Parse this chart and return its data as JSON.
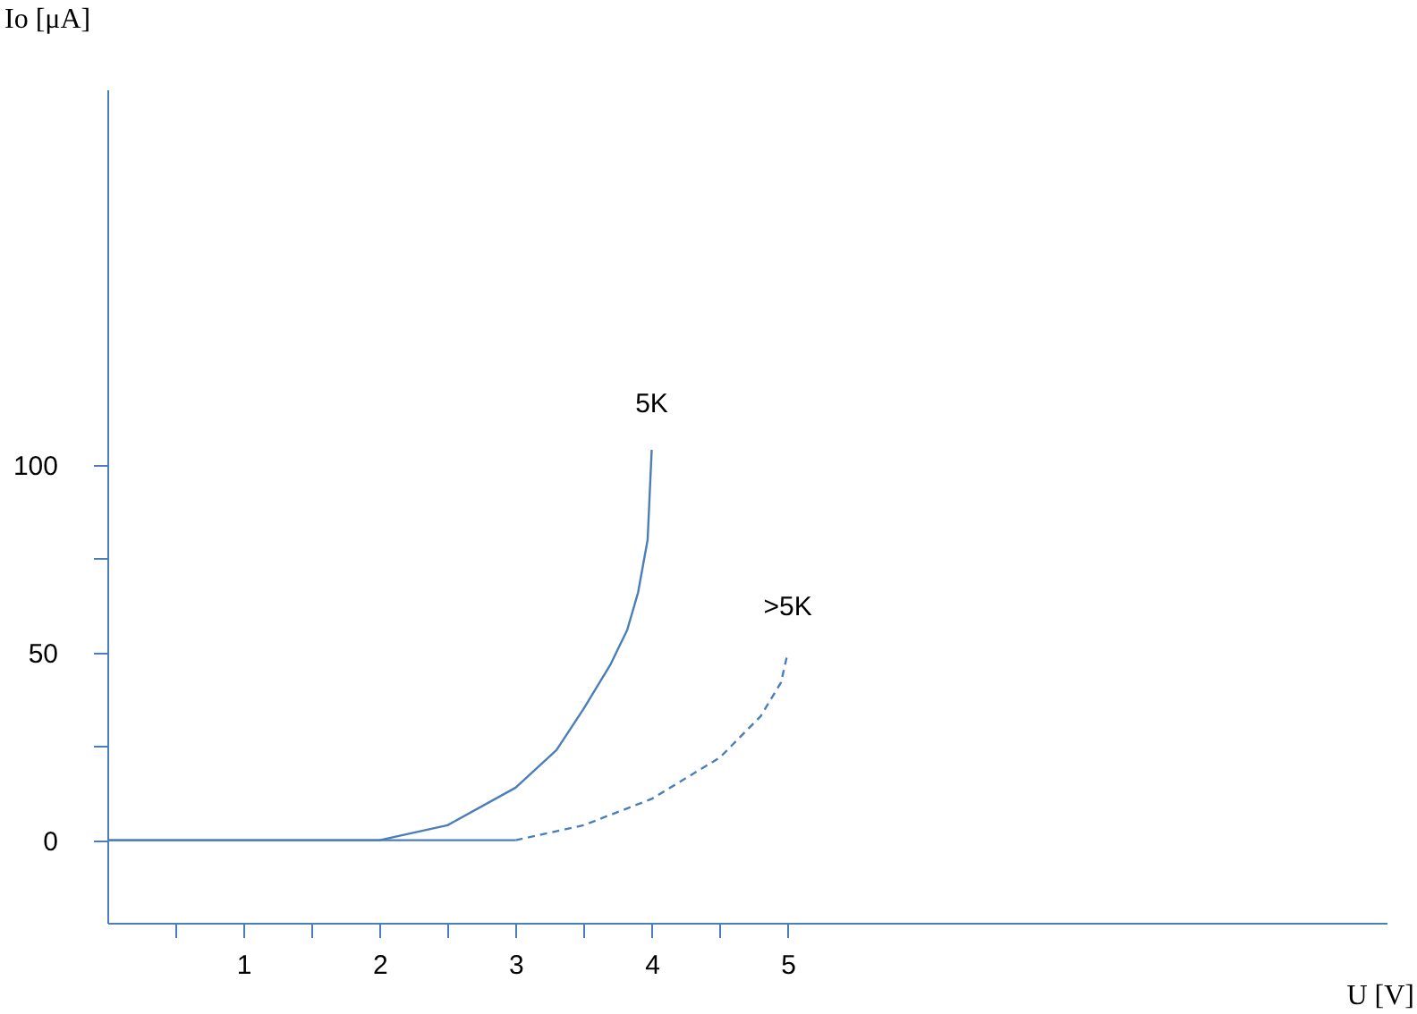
{
  "chart_data": {
    "type": "line",
    "xlabel": "U [V]",
    "ylabel": "Io [μA]",
    "xlim": [
      0,
      9.4
    ],
    "ylim": [
      -22,
      200
    ],
    "xticks": [
      {
        "value": 0.5,
        "label": null
      },
      1,
      {
        "value": 1.5,
        "label": null
      },
      2,
      {
        "value": 2.5,
        "label": null
      },
      3,
      {
        "value": 3.5,
        "label": null
      },
      4,
      {
        "value": 4.5,
        "label": null
      },
      5
    ],
    "yticks": [
      0,
      {
        "value": 25,
        "label": null
      },
      50,
      {
        "value": 75,
        "label": null
      },
      100
    ],
    "grid": false,
    "marker": "none",
    "series": [
      {
        "name": "5K",
        "color": "#4a7ebb",
        "line_style": "solid",
        "x": [
          0,
          2,
          2.5,
          3,
          3.3,
          3.5,
          3.7,
          3.82,
          3.9,
          3.97,
          4
        ],
        "values": [
          0,
          0,
          4,
          14,
          24,
          35,
          47,
          56,
          66,
          80,
          104
        ]
      },
      {
        "color": "#4a7ebb",
        "line_style": "solid",
        "x": [
          0,
          3
        ],
        "values": [
          0,
          0
        ]
      },
      {
        "name": ">5K",
        "color": "#4a7ebb",
        "line_style": "dashed",
        "x": [
          3,
          3.5,
          4,
          4.5,
          4.8,
          4.95,
          5
        ],
        "values": [
          0,
          4,
          11,
          22,
          33,
          42,
          50
        ]
      }
    ]
  }
}
